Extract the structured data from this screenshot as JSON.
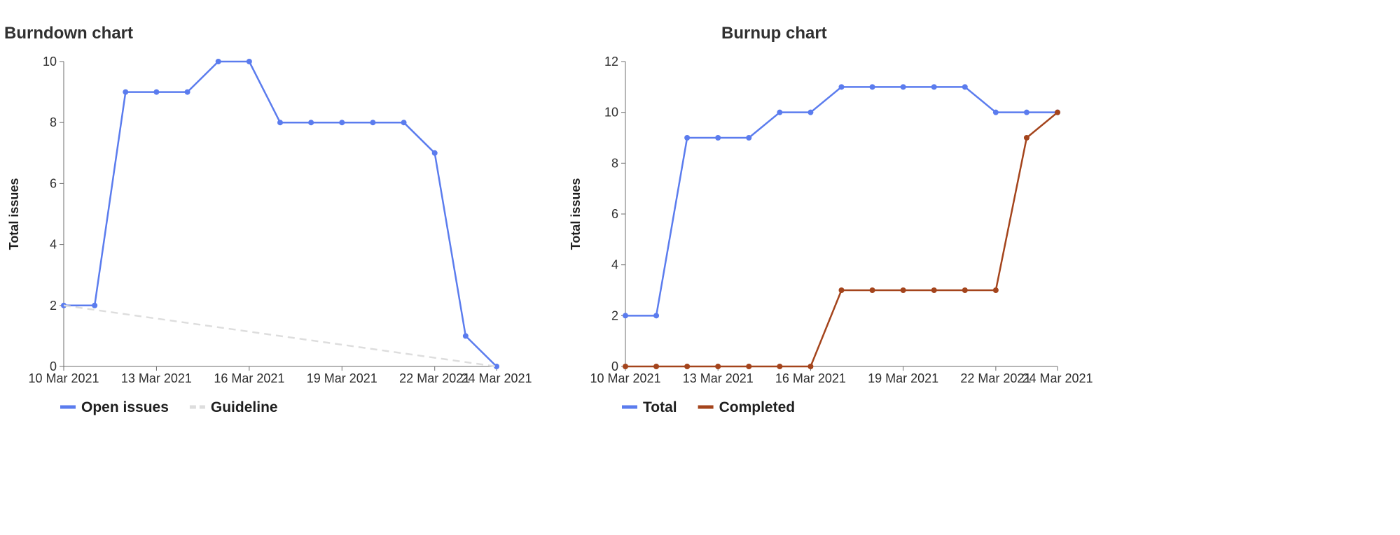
{
  "charts": [
    {
      "title": "Burndown chart",
      "ylabel": "Total issues"
    },
    {
      "title": "Burnup chart",
      "ylabel": "Total issues"
    }
  ],
  "chart_data": [
    {
      "type": "line",
      "title": "Burndown chart",
      "xlabel": "",
      "ylabel": "Total issues",
      "ylim": [
        0,
        10
      ],
      "yticks": [
        0,
        2,
        4,
        6,
        8,
        10
      ],
      "xlim": [
        "10 Mar 2021",
        "24 Mar 2021"
      ],
      "xticks": [
        "10 Mar 2021",
        "13 Mar 2021",
        "16 Mar 2021",
        "19 Mar 2021",
        "22 Mar 2021",
        "24 Mar 2021"
      ],
      "x": [
        "10 Mar 2021",
        "11 Mar 2021",
        "12 Mar 2021",
        "13 Mar 2021",
        "14 Mar 2021",
        "15 Mar 2021",
        "16 Mar 2021",
        "17 Mar 2021",
        "18 Mar 2021",
        "19 Mar 2021",
        "20 Mar 2021",
        "21 Mar 2021",
        "22 Mar 2021",
        "23 Mar 2021",
        "24 Mar 2021"
      ],
      "grid": false,
      "legend_position": "bottom-left",
      "series": [
        {
          "name": "Open issues",
          "color": "#5b7cee",
          "style": "solid",
          "markers": true,
          "values": [
            2,
            2,
            9,
            9,
            9,
            10,
            10,
            8,
            8,
            8,
            8,
            8,
            7,
            1,
            0
          ]
        },
        {
          "name": "Guideline",
          "color": "#dddddd",
          "style": "dashed",
          "markers": false,
          "x": [
            "10 Mar 2021",
            "24 Mar 2021"
          ],
          "values": [
            2,
            0
          ]
        }
      ]
    },
    {
      "type": "line",
      "title": "Burnup chart",
      "xlabel": "",
      "ylabel": "Total issues",
      "ylim": [
        0,
        12
      ],
      "yticks": [
        0,
        2,
        4,
        6,
        8,
        10,
        12
      ],
      "xlim": [
        "10 Mar 2021",
        "24 Mar 2021"
      ],
      "xticks": [
        "10 Mar 2021",
        "13 Mar 2021",
        "16 Mar 2021",
        "19 Mar 2021",
        "22 Mar 2021",
        "24 Mar 2021"
      ],
      "x": [
        "10 Mar 2021",
        "11 Mar 2021",
        "12 Mar 2021",
        "13 Mar 2021",
        "14 Mar 2021",
        "15 Mar 2021",
        "16 Mar 2021",
        "17 Mar 2021",
        "18 Mar 2021",
        "19 Mar 2021",
        "20 Mar 2021",
        "21 Mar 2021",
        "22 Mar 2021",
        "23 Mar 2021",
        "24 Mar 2021"
      ],
      "grid": false,
      "legend_position": "bottom-left",
      "series": [
        {
          "name": "Total",
          "color": "#5b7cee",
          "style": "solid",
          "markers": true,
          "values": [
            2,
            2,
            9,
            9,
            9,
            10,
            10,
            11,
            11,
            11,
            11,
            11,
            10,
            10,
            10
          ]
        },
        {
          "name": "Completed",
          "color": "#a4441c",
          "style": "solid",
          "markers": true,
          "values": [
            0,
            0,
            0,
            0,
            0,
            0,
            0,
            3,
            3,
            3,
            3,
            3,
            3,
            9,
            10
          ]
        }
      ]
    }
  ]
}
